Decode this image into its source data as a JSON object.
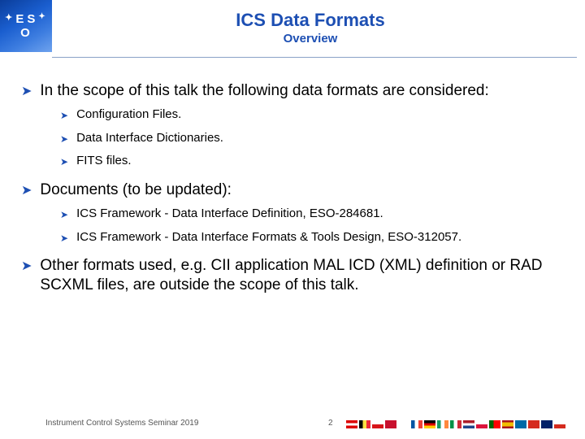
{
  "header": {
    "title": "ICS Data Formats",
    "subtitle": "Overview",
    "title_color": "#1d4fb3",
    "hr_color": "#8aa2c7",
    "logo": {
      "bg_gradient_colors": [
        "#0a3d9a",
        "#1a5ecf",
        "#3d7de0",
        "#6fa3ee"
      ],
      "text_color": "#ffffff",
      "row1_left": "E",
      "row1_right": "S",
      "row2": "O",
      "star_glyph": "✦"
    }
  },
  "body": {
    "bullet_glyph": "➤",
    "bullet_color": "#1d4fb3",
    "text_color": "#000000",
    "lvl1_fontsize": 19,
    "lvl2_fontsize": 15,
    "items": [
      {
        "text": "In the scope of this talk the following data formats are considered:",
        "children": [
          {
            "text": "Configuration Files."
          },
          {
            "text": "Data Interface Dictionaries."
          },
          {
            "text": "FITS files."
          }
        ]
      },
      {
        "text": "Documents (to be updated):",
        "children": [
          {
            "text": "ICS Framework - Data Interface Definition, ESO-284681."
          },
          {
            "text": "ICS Framework - Data Interface Formats & Tools Design, ESO-312057."
          }
        ]
      },
      {
        "text": "Other formats used, e.g. CII application MAL ICD (XML) definition or RAD SCXML files, are outside the scope of this talk.",
        "children": []
      }
    ]
  },
  "footer": {
    "left_text": "Instrument Control Systems Seminar 2019",
    "page_number": "2",
    "text_color": "#555555",
    "flags": [
      {
        "name": "austria",
        "style": "background:linear-gradient(#d00 33%,#fff 33% 66%,#d00 66%);"
      },
      {
        "name": "belgium",
        "style": "background:linear-gradient(90deg,#000 33%,#fae042 33% 66%,#ed2939 66%);"
      },
      {
        "name": "czech",
        "style": "background:linear-gradient(#fff 50%,#d7141a 50%);position:relative;"
      },
      {
        "name": "denmark",
        "style": "background:#c8102e;position:relative;"
      },
      {
        "name": "finland",
        "style": "background:#fff;position:relative;"
      },
      {
        "name": "france",
        "style": "background:linear-gradient(90deg,#0055a4 33%,#fff 33% 66%,#ef4135 66%);"
      },
      {
        "name": "germany",
        "style": "background:linear-gradient(#000 33%,#dd0000 33% 66%,#ffce00 66%);"
      },
      {
        "name": "ireland",
        "style": "background:linear-gradient(90deg,#169b62 33%,#fff 33% 66%,#ff883e 66%);"
      },
      {
        "name": "italy",
        "style": "background:linear-gradient(90deg,#009246 33%,#fff 33% 66%,#ce2b37 66%);"
      },
      {
        "name": "netherlands",
        "style": "background:linear-gradient(#ae1c28 33%,#fff 33% 66%,#21468b 66%);"
      },
      {
        "name": "poland",
        "style": "background:linear-gradient(#fff 50%,#dc143c 50%);"
      },
      {
        "name": "portugal",
        "style": "background:linear-gradient(90deg,#006600 40%,#ff0000 40%);"
      },
      {
        "name": "spain",
        "style": "background:linear-gradient(#aa151b 25%,#f1bf00 25% 75%,#aa151b 75%);"
      },
      {
        "name": "sweden",
        "style": "background:#006aa7;position:relative;"
      },
      {
        "name": "switzerland",
        "style": "background:#d52b1e;position:relative;"
      },
      {
        "name": "uk",
        "style": "background:#012169;position:relative;"
      },
      {
        "name": "chile",
        "style": "background:linear-gradient(#fff 50%,#d52b1e 50%);position:relative;"
      }
    ]
  }
}
